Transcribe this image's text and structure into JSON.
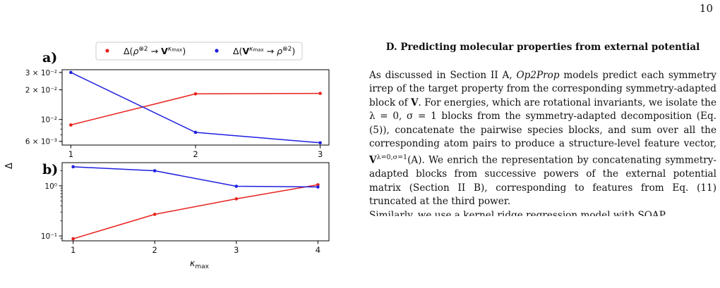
{
  "page": {
    "number": "10"
  },
  "section": {
    "title": "D.    Predicting molecular properties from external potential",
    "paragraph_runs": [
      {
        "t": "As discussed in Section II A, "
      },
      {
        "t": "Op2Prop",
        "style": "i"
      },
      {
        "t": " models predict each symmetry irrep of the target property from the corresponding symmetry-adapted block of "
      },
      {
        "t": "V",
        "style": "b"
      },
      {
        "t": ". For energies, which are rotational invariants, we isolate the λ = 0, σ = 1 blocks from the symmetry-adapted decomposition (Eq. (5)), concatenate the pairwise species blocks, and sum over all the corresponding atom pairs to produce a structure-level feature vector, "
      },
      {
        "t": "V",
        "style": "b"
      },
      {
        "t": "λ=0,σ=1",
        "style": "sup"
      },
      {
        "t": "(A). We enrich the representation by concatenating symmetry-adapted blocks from successive powers of the external potential matrix (Section II B), corresponding to features from Eq. (11) truncated at the third power."
      }
    ],
    "cut_line": "Similarly, we use a kernel ridge regression model with SOAP"
  },
  "figure": {
    "legend": {
      "entries": [
        {
          "label": "Δ(ρ^⊗2 → V^κmax)",
          "color": "#e8211d"
        },
        {
          "label": "Δ(V^κmax → ρ^⊗2)",
          "color": "#1f1fe0"
        }
      ]
    },
    "ylabel": "Δ",
    "xlabel": "κ_max",
    "panel_a_letter": "a)",
    "panel_b_letter": "b)"
  },
  "chart_data": [
    {
      "type": "line",
      "panel": "a)",
      "x": [
        1,
        2,
        3
      ],
      "xticks": [
        "1",
        "2",
        "3"
      ],
      "yscale": "log",
      "ylim": [
        0.0055,
        0.032
      ],
      "yticks": [
        {
          "value": 0.03,
          "label": "3 × 10⁻²"
        },
        {
          "value": 0.02,
          "label": "2 × 10⁻²"
        },
        {
          "value": 0.01,
          "label": "10⁻²"
        },
        {
          "value": 0.006,
          "label": "6 × 10⁻³"
        }
      ],
      "series": [
        {
          "name": "Δ(ρ^⊗2 → V^κmax)",
          "color": "#e8211d",
          "values": [
            0.0088,
            0.0182,
            0.0184
          ]
        },
        {
          "name": "Δ(V^κmax → ρ^⊗2)",
          "color": "#1f1fe0",
          "values": [
            0.03,
            0.0074,
            0.0058
          ]
        }
      ],
      "grid": false
    },
    {
      "type": "line",
      "panel": "b)",
      "x": [
        1,
        2,
        3,
        4
      ],
      "xticks": [
        "1",
        "2",
        "3",
        "4"
      ],
      "xlabel": "κ_max",
      "yscale": "log",
      "ylim": [
        0.08,
        2.9
      ],
      "yticks": [
        {
          "value": 1,
          "label": "10⁰"
        },
        {
          "value": 0.1,
          "label": "10⁻¹"
        }
      ],
      "series": [
        {
          "name": "Δ(ρ^⊗2 → V^κmax)",
          "color": "#e8211d",
          "values": [
            0.088,
            0.27,
            0.55,
            1.05
          ]
        },
        {
          "name": "Δ(V^κmax → ρ^⊗2)",
          "color": "#1f1fe0",
          "values": [
            2.4,
            2.0,
            0.98,
            0.95
          ]
        }
      ],
      "grid": false
    }
  ]
}
